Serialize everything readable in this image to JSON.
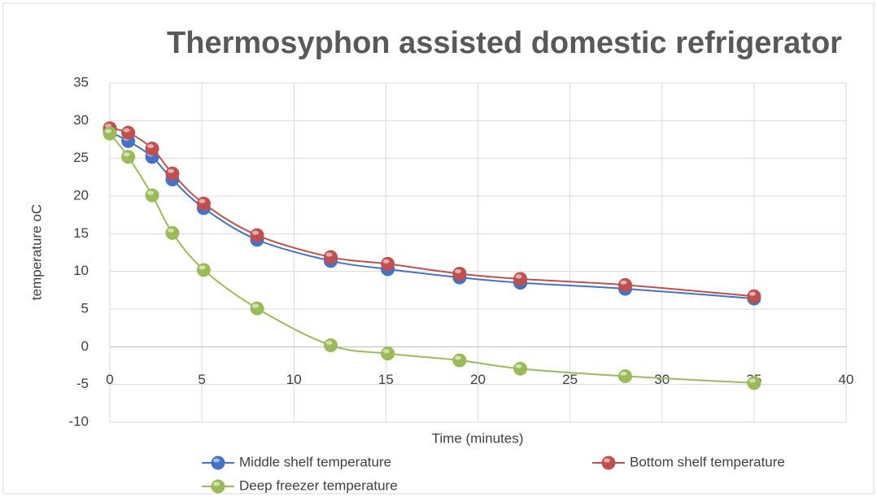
{
  "chart_data": {
    "type": "line",
    "title": "Thermosyphon assisted domestic refrigerator",
    "x_label": "Time (minutes)",
    "y_label": "temperature oC",
    "xlim": [
      0,
      40
    ],
    "xticks": [
      0,
      5,
      10,
      15,
      20,
      25,
      30,
      35,
      40
    ],
    "ylim": [
      -10,
      35
    ],
    "yticks": [
      -10,
      -5,
      0,
      5,
      10,
      15,
      20,
      25,
      30,
      35
    ],
    "grid": true,
    "smooth": true,
    "legend": "bottom",
    "x": [
      0,
      1,
      2.3,
      3.4,
      5.1,
      8,
      12,
      15.1,
      19,
      22.3,
      28,
      35
    ],
    "series": [
      {
        "name": "Middle shelf temperature",
        "color": "#4472c4",
        "values": [
          28.5,
          27.3,
          25.2,
          22.2,
          18.4,
          14.2,
          11.4,
          10.3,
          9.2,
          8.5,
          7.7,
          6.4
        ]
      },
      {
        "name": "Bottom shelf temperature",
        "color": "#c0504d",
        "values": [
          29,
          28.4,
          26.3,
          23,
          19,
          14.8,
          11.9,
          11,
          9.7,
          9,
          8.2,
          6.7
        ]
      },
      {
        "name": "Deep freezer temperature",
        "color": "#9bbb59",
        "values": [
          28.3,
          25.2,
          20.1,
          15.1,
          10.2,
          5.1,
          0.2,
          -0.9,
          -1.8,
          -2.9,
          -3.9,
          -4.8
        ]
      }
    ]
  }
}
